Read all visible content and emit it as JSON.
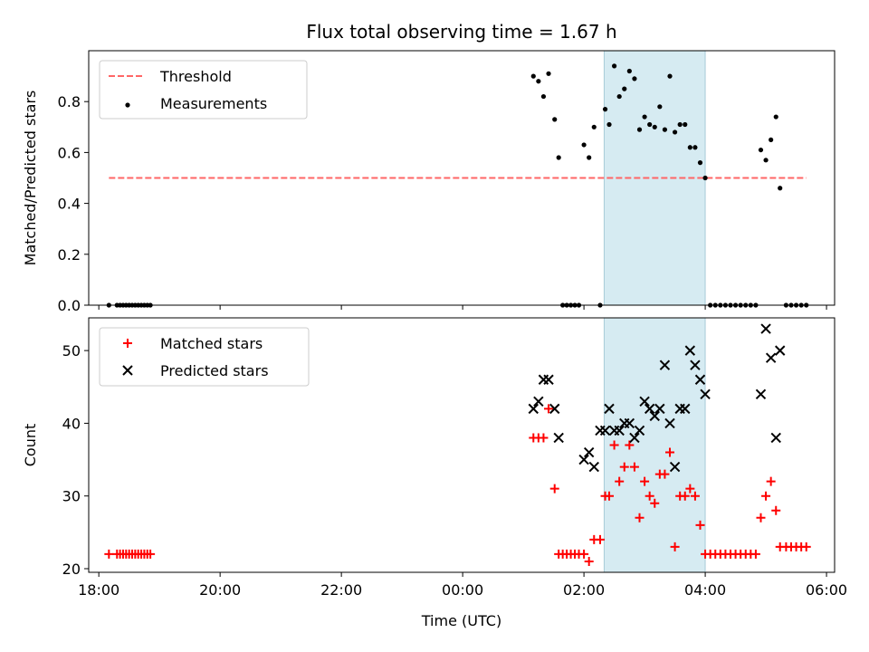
{
  "chart_data": [
    {
      "type": "scatter",
      "title": "Flux total observing time = 1.67 h",
      "xlabel": "",
      "ylabel": "Matched/Predicted stars",
      "xlim": [
        "17:50",
        "06:08"
      ],
      "ylim": [
        0,
        1.0
      ],
      "yticks": [
        "0.0",
        "0.2",
        "0.4",
        "0.6",
        "0.8"
      ],
      "ytick_values": [
        0,
        0.2,
        0.4,
        0.6,
        0.8
      ],
      "grid": false,
      "legend_position": "upper left",
      "shaded_span": {
        "start": "02:20",
        "end": "04:00",
        "color": "#add8e6"
      },
      "threshold": {
        "name": "Threshold",
        "value": 0.5,
        "x_start": "18:10",
        "x_end": "05:40",
        "color": "#ff6666",
        "style": "dashed"
      },
      "series": [
        {
          "name": "Measurements",
          "color": "#000000",
          "marker": "dot",
          "points": [
            [
              "18:10",
              0
            ],
            [
              "18:18",
              0
            ],
            [
              "18:21",
              0
            ],
            [
              "18:24",
              0
            ],
            [
              "18:27",
              0
            ],
            [
              "18:30",
              0
            ],
            [
              "18:33",
              0
            ],
            [
              "18:36",
              0
            ],
            [
              "18:39",
              0
            ],
            [
              "18:42",
              0
            ],
            [
              "18:45",
              0
            ],
            [
              "18:48",
              0
            ],
            [
              "18:51",
              0
            ],
            [
              "01:10",
              0.9
            ],
            [
              "01:15",
              0.88
            ],
            [
              "01:20",
              0.82
            ],
            [
              "01:25",
              0.91
            ],
            [
              "01:31",
              0.73
            ],
            [
              "01:35",
              0.58
            ],
            [
              "01:39",
              0
            ],
            [
              "01:43",
              0
            ],
            [
              "01:47",
              0
            ],
            [
              "01:51",
              0
            ],
            [
              "01:55",
              0
            ],
            [
              "02:00",
              0.63
            ],
            [
              "02:05",
              0.58
            ],
            [
              "02:10",
              0.7
            ],
            [
              "02:16",
              0
            ],
            [
              "02:21",
              0.77
            ],
            [
              "02:25",
              0.71
            ],
            [
              "02:30",
              0.94
            ],
            [
              "02:35",
              0.82
            ],
            [
              "02:40",
              0.85
            ],
            [
              "02:45",
              0.92
            ],
            [
              "02:50",
              0.89
            ],
            [
              "02:55",
              0.69
            ],
            [
              "03:00",
              0.74
            ],
            [
              "03:05",
              0.71
            ],
            [
              "03:10",
              0.7
            ],
            [
              "03:15",
              0.78
            ],
            [
              "03:20",
              0.69
            ],
            [
              "03:25",
              0.9
            ],
            [
              "03:30",
              0.68
            ],
            [
              "03:35",
              0.71
            ],
            [
              "03:40",
              0.71
            ],
            [
              "03:45",
              0.62
            ],
            [
              "03:50",
              0.62
            ],
            [
              "03:55",
              0.56
            ],
            [
              "04:00",
              0.5
            ],
            [
              "04:05",
              0
            ],
            [
              "04:10",
              0
            ],
            [
              "04:15",
              0
            ],
            [
              "04:20",
              0
            ],
            [
              "04:25",
              0
            ],
            [
              "04:30",
              0
            ],
            [
              "04:35",
              0
            ],
            [
              "04:40",
              0
            ],
            [
              "04:45",
              0
            ],
            [
              "04:50",
              0
            ],
            [
              "04:55",
              0.61
            ],
            [
              "05:00",
              0.57
            ],
            [
              "05:05",
              0.65
            ],
            [
              "05:10",
              0.74
            ],
            [
              "05:14",
              0.46
            ],
            [
              "05:20",
              0
            ],
            [
              "05:25",
              0
            ],
            [
              "05:30",
              0
            ],
            [
              "05:35",
              0
            ],
            [
              "05:40",
              0
            ]
          ]
        }
      ]
    },
    {
      "type": "scatter",
      "title": "",
      "xlabel": "Time (UTC)",
      "ylabel": "Count",
      "xlim": [
        "17:50",
        "06:08"
      ],
      "xticks": [
        "18:00",
        "20:00",
        "22:00",
        "00:00",
        "02:00",
        "04:00",
        "06:00"
      ],
      "ylim": [
        19.5,
        54.5
      ],
      "yticks": [
        "20",
        "30",
        "40",
        "50"
      ],
      "ytick_values": [
        20,
        30,
        40,
        50
      ],
      "grid": false,
      "legend_position": "upper left",
      "shaded_span": {
        "start": "02:20",
        "end": "04:00",
        "color": "#add8e6"
      },
      "series": [
        {
          "name": "Matched stars",
          "color": "#ff0000",
          "marker": "plus",
          "points": [
            [
              "18:10",
              22
            ],
            [
              "18:18",
              22
            ],
            [
              "18:21",
              22
            ],
            [
              "18:24",
              22
            ],
            [
              "18:27",
              22
            ],
            [
              "18:30",
              22
            ],
            [
              "18:33",
              22
            ],
            [
              "18:36",
              22
            ],
            [
              "18:39",
              22
            ],
            [
              "18:42",
              22
            ],
            [
              "18:45",
              22
            ],
            [
              "18:48",
              22
            ],
            [
              "18:51",
              22
            ],
            [
              "01:10",
              38
            ],
            [
              "01:15",
              38
            ],
            [
              "01:20",
              38
            ],
            [
              "01:25",
              42
            ],
            [
              "01:31",
              31
            ],
            [
              "01:35",
              22
            ],
            [
              "01:39",
              22
            ],
            [
              "01:43",
              22
            ],
            [
              "01:47",
              22
            ],
            [
              "01:51",
              22
            ],
            [
              "01:55",
              22
            ],
            [
              "02:00",
              22
            ],
            [
              "02:05",
              21
            ],
            [
              "02:10",
              24
            ],
            [
              "02:16",
              24
            ],
            [
              "02:21",
              30
            ],
            [
              "02:25",
              30
            ],
            [
              "02:30",
              37
            ],
            [
              "02:35",
              32
            ],
            [
              "02:40",
              34
            ],
            [
              "02:45",
              37
            ],
            [
              "02:50",
              34
            ],
            [
              "02:55",
              27
            ],
            [
              "03:00",
              32
            ],
            [
              "03:05",
              30
            ],
            [
              "03:10",
              29
            ],
            [
              "03:15",
              33
            ],
            [
              "03:20",
              33
            ],
            [
              "03:25",
              36
            ],
            [
              "03:30",
              23
            ],
            [
              "03:35",
              30
            ],
            [
              "03:40",
              30
            ],
            [
              "03:45",
              31
            ],
            [
              "03:50",
              30
            ],
            [
              "03:55",
              26
            ],
            [
              "04:00",
              22
            ],
            [
              "04:05",
              22
            ],
            [
              "04:10",
              22
            ],
            [
              "04:15",
              22
            ],
            [
              "04:20",
              22
            ],
            [
              "04:25",
              22
            ],
            [
              "04:30",
              22
            ],
            [
              "04:35",
              22
            ],
            [
              "04:40",
              22
            ],
            [
              "04:45",
              22
            ],
            [
              "04:50",
              22
            ],
            [
              "04:55",
              27
            ],
            [
              "05:00",
              30
            ],
            [
              "05:05",
              32
            ],
            [
              "05:10",
              28
            ],
            [
              "05:14",
              23
            ],
            [
              "05:20",
              23
            ],
            [
              "05:25",
              23
            ],
            [
              "05:30",
              23
            ],
            [
              "05:35",
              23
            ],
            [
              "05:40",
              23
            ]
          ]
        },
        {
          "name": "Predicted stars",
          "color": "#000000",
          "marker": "x",
          "points": [
            [
              "01:10",
              42
            ],
            [
              "01:15",
              43
            ],
            [
              "01:20",
              46
            ],
            [
              "01:25",
              46
            ],
            [
              "01:31",
              42
            ],
            [
              "01:35",
              38
            ],
            [
              "02:00",
              35
            ],
            [
              "02:05",
              36
            ],
            [
              "02:10",
              34
            ],
            [
              "02:16",
              39
            ],
            [
              "02:21",
              39
            ],
            [
              "02:25",
              42
            ],
            [
              "02:30",
              39
            ],
            [
              "02:35",
              39
            ],
            [
              "02:40",
              40
            ],
            [
              "02:45",
              40
            ],
            [
              "02:50",
              38
            ],
            [
              "02:55",
              39
            ],
            [
              "03:00",
              43
            ],
            [
              "03:05",
              42
            ],
            [
              "03:10",
              41
            ],
            [
              "03:15",
              42
            ],
            [
              "03:20",
              48
            ],
            [
              "03:25",
              40
            ],
            [
              "03:30",
              34
            ],
            [
              "03:35",
              42
            ],
            [
              "03:40",
              42
            ],
            [
              "03:45",
              50
            ],
            [
              "03:50",
              48
            ],
            [
              "03:55",
              46
            ],
            [
              "04:00",
              44
            ],
            [
              "04:55",
              44
            ],
            [
              "05:00",
              53
            ],
            [
              "05:05",
              49
            ],
            [
              "05:10",
              38
            ],
            [
              "05:14",
              50
            ]
          ]
        }
      ]
    }
  ]
}
